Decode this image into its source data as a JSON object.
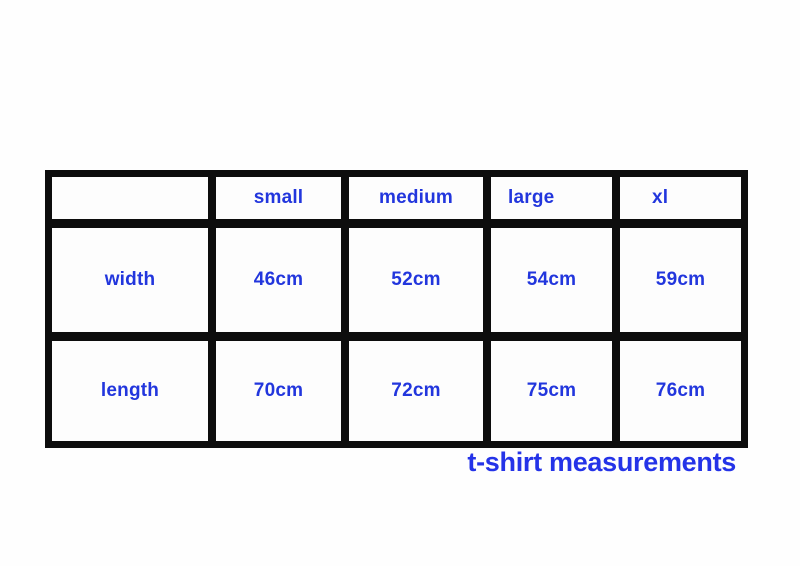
{
  "caption": "t-shirt measurements",
  "colors": {
    "text_blue": "#2236dd",
    "caption_blue": "#2433e8",
    "table_border": "#0d0d0d",
    "background": "#fefefe"
  },
  "table": {
    "headers": [
      "",
      "small",
      "medium",
      "large",
      "xl"
    ],
    "rows": [
      {
        "label": "width",
        "values": [
          "46cm",
          "52cm",
          "54cm",
          "59cm"
        ]
      },
      {
        "label": "length",
        "values": [
          "70cm",
          "72cm",
          "75cm",
          "76cm"
        ]
      }
    ]
  },
  "chart_data": {
    "type": "table",
    "title": "t-shirt measurements",
    "columns": [
      "",
      "small",
      "medium",
      "large",
      "xl"
    ],
    "rows": [
      [
        "width",
        "46cm",
        "52cm",
        "54cm",
        "59cm"
      ],
      [
        "length",
        "70cm",
        "72cm",
        "75cm",
        "76cm"
      ]
    ]
  }
}
